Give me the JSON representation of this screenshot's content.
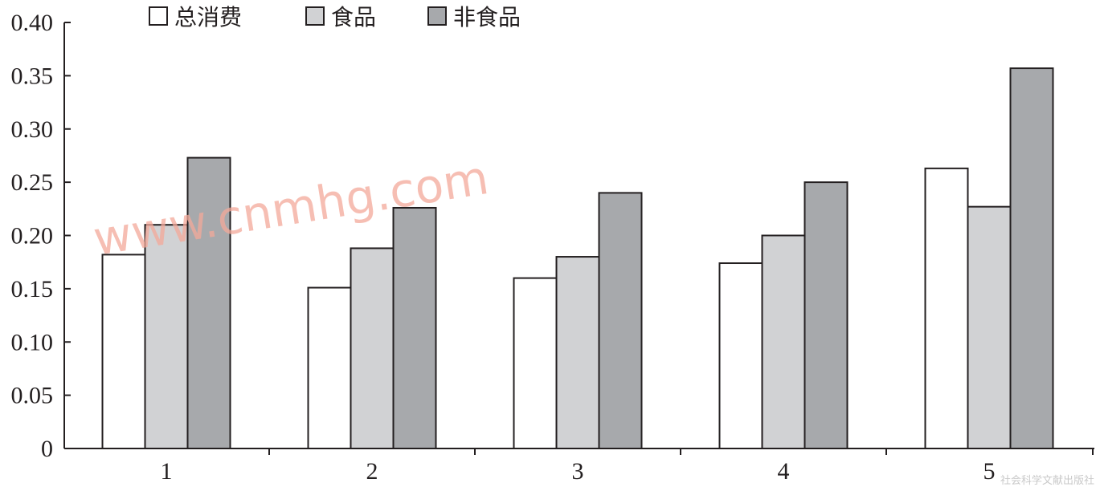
{
  "chart_data": {
    "type": "bar",
    "categories": [
      "1",
      "2",
      "3",
      "4",
      "5"
    ],
    "series": [
      {
        "name": "总消费",
        "values": [
          0.182,
          0.151,
          0.16,
          0.174,
          0.263
        ],
        "color": "#ffffff"
      },
      {
        "name": "食品",
        "values": [
          0.21,
          0.188,
          0.18,
          0.2,
          0.227
        ],
        "color": "#d1d2d4"
      },
      {
        "name": "非食品",
        "values": [
          0.273,
          0.226,
          0.24,
          0.25,
          0.357
        ],
        "color": "#a7a9ac"
      }
    ],
    "yticks": [
      "0",
      "0.05",
      "0.10",
      "0.15",
      "0.20",
      "0.25",
      "0.30",
      "0.35",
      "0.40"
    ],
    "ylim": [
      0,
      0.4
    ],
    "title": "",
    "xlabel": "",
    "ylabel": "",
    "grid": false,
    "legend_position": "top-left"
  },
  "watermark": "www.cnmhg.com",
  "source_mark": "社会科学文献出版社"
}
